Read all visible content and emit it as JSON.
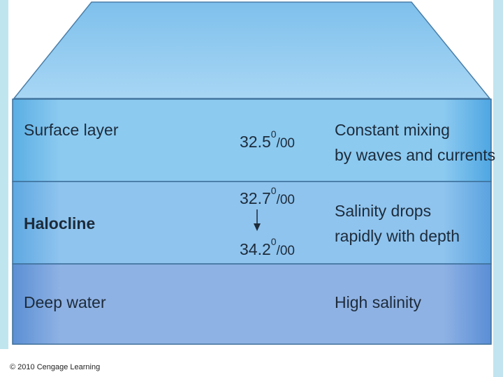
{
  "layers": [
    {
      "name": "Surface layer",
      "salinity": [
        {
          "number": "32.5",
          "sup": "0",
          "unit": "/00"
        }
      ],
      "description": [
        "Constant mixing",
        "by waves and currents"
      ]
    },
    {
      "name": "Halocline",
      "salinity": [
        {
          "number": "32.7",
          "sup": "0",
          "unit": "/00"
        },
        {
          "number": "34.2",
          "sup": "0",
          "unit": "/00"
        }
      ],
      "description": [
        "Salinity drops",
        "rapidly with depth"
      ]
    },
    {
      "name": "Deep water",
      "salinity": [],
      "description": [
        "High salinity"
      ]
    }
  ],
  "credit": "© 2010 Cengage Learning"
}
